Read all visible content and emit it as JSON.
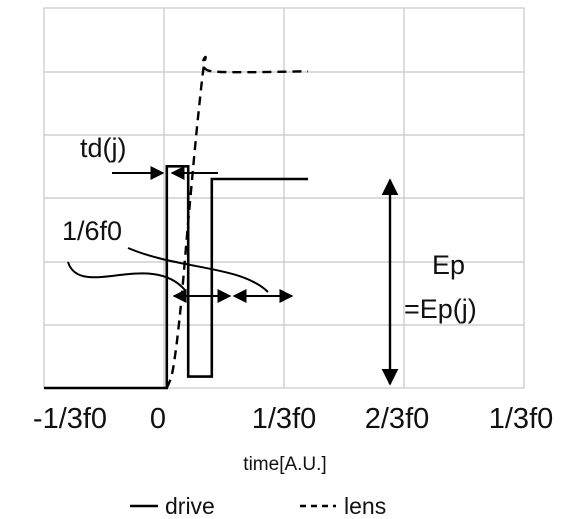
{
  "chart_data": {
    "type": "line",
    "xlabel": "time[A.U.]",
    "ylabel": "",
    "x_tick_labels": [
      "-1/3f0",
      "0",
      "1/3f0",
      "2/3f0",
      "1/3f0"
    ],
    "xlim": [
      -0.3333,
      1.0
    ],
    "ylim": [
      0,
      6
    ],
    "grid": true,
    "legend": "bottom",
    "series": [
      {
        "name": "drive",
        "style": "solid",
        "color": "#000000",
        "points": [
          [
            -0.3333,
            0.0
          ],
          [
            0.0078,
            0.0
          ],
          [
            0.0078,
            3.5
          ],
          [
            0.0672,
            3.5
          ],
          [
            0.0672,
            0.18
          ],
          [
            0.1328,
            0.18
          ],
          [
            0.1328,
            3.3
          ],
          [
            0.4,
            3.3
          ]
        ]
      },
      {
        "name": "lens",
        "style": "dashed",
        "color": "#000000",
        "points": [
          [
            0.0078,
            0.0
          ],
          [
            0.025,
            0.3
          ],
          [
            0.045,
            1.2
          ],
          [
            0.07,
            2.8
          ],
          [
            0.095,
            4.3
          ],
          [
            0.115,
            5.2
          ],
          [
            0.133,
            5.0
          ],
          [
            0.4,
            5.0
          ]
        ]
      }
    ],
    "annotations": [
      {
        "id": "td",
        "text": "td(j)"
      },
      {
        "id": "sixth",
        "text": "1/6f0"
      },
      {
        "id": "ep",
        "text": "Ep"
      },
      {
        "id": "epj",
        "text": "=Ep(j)"
      }
    ]
  }
}
